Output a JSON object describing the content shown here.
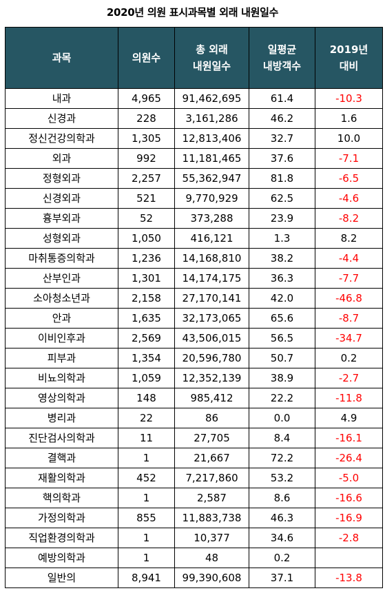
{
  "title": "2020년 의원 표시과목별 외래 내원일수",
  "colors": {
    "header_bg": "#265663",
    "header_text": "#ffffff",
    "negative": "#ff0000"
  },
  "headers": {
    "subject": [
      "과목"
    ],
    "clinics": [
      "의원수"
    ],
    "total_days": [
      "총 외래",
      "내원일수"
    ],
    "daily_avg": [
      "일평균",
      "내방객수"
    ],
    "vs2019": [
      "2019년",
      "대비"
    ]
  },
  "rows": [
    {
      "subject": "내과",
      "clinics": "4,965",
      "total_days": "91,462,695",
      "daily_avg": "61.4",
      "vs2019": "-10.3"
    },
    {
      "subject": "신경과",
      "clinics": "228",
      "total_days": "3,161,286",
      "daily_avg": "46.2",
      "vs2019": "1.6"
    },
    {
      "subject": "정신건강의학과",
      "clinics": "1,305",
      "total_days": "12,813,406",
      "daily_avg": "32.7",
      "vs2019": "10.0"
    },
    {
      "subject": "외과",
      "clinics": "992",
      "total_days": "11,181,465",
      "daily_avg": "37.6",
      "vs2019": "-7.1"
    },
    {
      "subject": "정형외과",
      "clinics": "2,257",
      "total_days": "55,362,947",
      "daily_avg": "81.8",
      "vs2019": "-6.5"
    },
    {
      "subject": "신경외과",
      "clinics": "521",
      "total_days": "9,770,929",
      "daily_avg": "62.5",
      "vs2019": "-4.6"
    },
    {
      "subject": "흉부외과",
      "clinics": "52",
      "total_days": "373,288",
      "daily_avg": "23.9",
      "vs2019": "-8.2"
    },
    {
      "subject": "성형외과",
      "clinics": "1,050",
      "total_days": "416,121",
      "daily_avg": "1.3",
      "vs2019": "8.2"
    },
    {
      "subject": "마취통증의학과",
      "clinics": "1,236",
      "total_days": "14,168,810",
      "daily_avg": "38.2",
      "vs2019": "-4.4"
    },
    {
      "subject": "산부인과",
      "clinics": "1,301",
      "total_days": "14,174,175",
      "daily_avg": "36.3",
      "vs2019": "-7.7"
    },
    {
      "subject": "소아청소년과",
      "clinics": "2,158",
      "total_days": "27,170,141",
      "daily_avg": "42.0",
      "vs2019": "-46.8"
    },
    {
      "subject": "안과",
      "clinics": "1,635",
      "total_days": "32,173,065",
      "daily_avg": "65.6",
      "vs2019": "-8.7"
    },
    {
      "subject": "이비인후과",
      "clinics": "2,569",
      "total_days": "43,506,015",
      "daily_avg": "56.5",
      "vs2019": "-34.7"
    },
    {
      "subject": "피부과",
      "clinics": "1,354",
      "total_days": "20,596,780",
      "daily_avg": "50.7",
      "vs2019": "0.2"
    },
    {
      "subject": "비뇨의학과",
      "clinics": "1,059",
      "total_days": "12,352,139",
      "daily_avg": "38.9",
      "vs2019": "-2.7"
    },
    {
      "subject": "영상의학과",
      "clinics": "148",
      "total_days": "985,412",
      "daily_avg": "22.2",
      "vs2019": "-11.8"
    },
    {
      "subject": "병리과",
      "clinics": "22",
      "total_days": "86",
      "daily_avg": "0.0",
      "vs2019": "4.9"
    },
    {
      "subject": "진단검사의학과",
      "clinics": "11",
      "total_days": "27,705",
      "daily_avg": "8.4",
      "vs2019": "-16.1"
    },
    {
      "subject": "결핵과",
      "clinics": "1",
      "total_days": "21,667",
      "daily_avg": "72.2",
      "vs2019": "-26.4"
    },
    {
      "subject": "재활의학과",
      "clinics": "452",
      "total_days": "7,217,860",
      "daily_avg": "53.2",
      "vs2019": "-5.0"
    },
    {
      "subject": "핵의학과",
      "clinics": "1",
      "total_days": "2,587",
      "daily_avg": "8.6",
      "vs2019": "-16.6"
    },
    {
      "subject": "가정의학과",
      "clinics": "855",
      "total_days": "11,883,738",
      "daily_avg": "46.3",
      "vs2019": "-16.9"
    },
    {
      "subject": "직업환경의학과",
      "clinics": "1",
      "total_days": "10,377",
      "daily_avg": "34.6",
      "vs2019": "-2.8"
    },
    {
      "subject": "예방의학과",
      "clinics": "1",
      "total_days": "48",
      "daily_avg": "0.2",
      "vs2019": ""
    },
    {
      "subject": "일반의",
      "clinics": "8,941",
      "total_days": "99,390,608",
      "daily_avg": "37.1",
      "vs2019": "-13.8"
    }
  ]
}
